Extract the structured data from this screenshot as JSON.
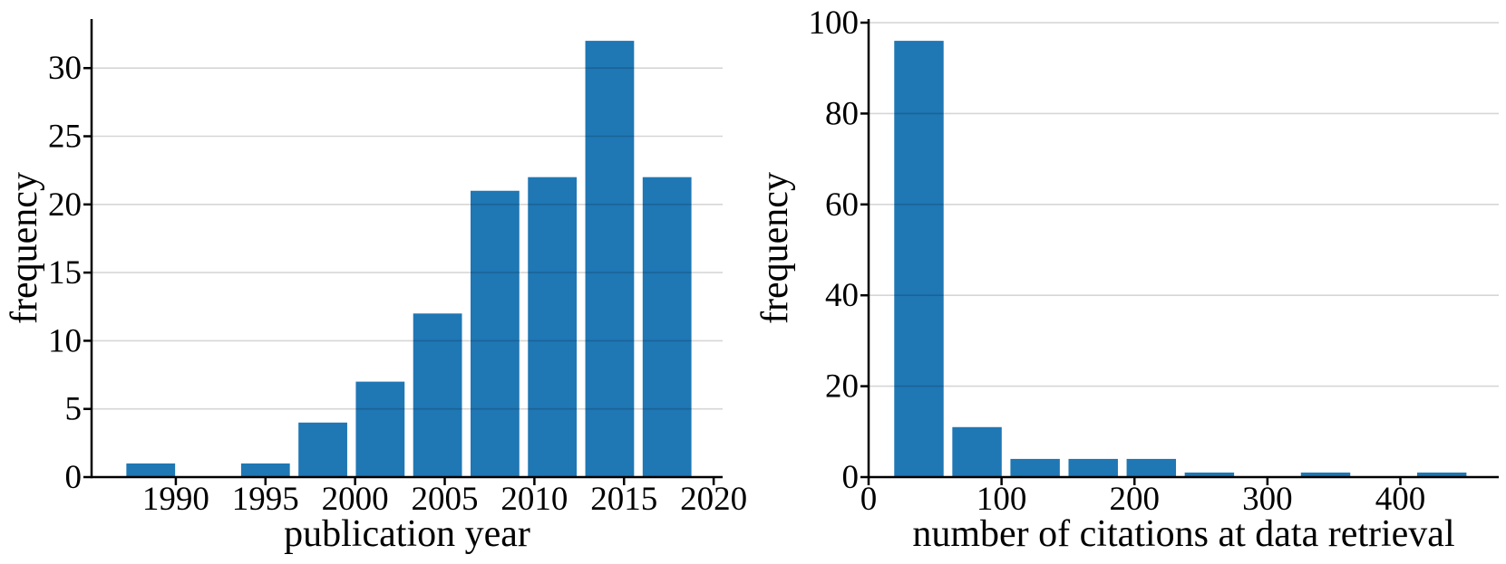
{
  "figure": {
    "background": "#ffffff",
    "text_color": "#000000"
  },
  "chart_data": [
    {
      "type": "bar",
      "subtype": "histogram",
      "xlabel": "publication year",
      "ylabel": "frequency",
      "bar_color": "#1f77b4",
      "grid_color": "rgba(0,0,0,0.16)",
      "axis_color": "#000000",
      "grid": "y-only",
      "legend": "none",
      "xlim": [
        1985.3,
        2020.5
      ],
      "ylim": [
        0,
        33.6
      ],
      "xticks": [
        1990,
        1995,
        2000,
        2005,
        2010,
        2015,
        2020
      ],
      "yticks": [
        0,
        5,
        10,
        15,
        20,
        25,
        30
      ],
      "bin_start": 1987,
      "bin_width": 3.2,
      "counts": [
        1,
        0,
        1,
        4,
        7,
        12,
        21,
        22,
        32,
        22
      ],
      "bar_rel_width": 0.85
    },
    {
      "type": "bar",
      "subtype": "histogram",
      "xlabel": "number of citations at data retrieval",
      "ylabel": "frequency",
      "bar_color": "#1f77b4",
      "grid_color": "rgba(0,0,0,0.16)",
      "axis_color": "#000000",
      "grid": "y-only",
      "legend": "none",
      "xlim": [
        0,
        474
      ],
      "ylim": [
        0,
        100.8
      ],
      "xticks": [
        0,
        100,
        200,
        300,
        400
      ],
      "yticks": [
        0,
        20,
        40,
        60,
        80,
        100
      ],
      "bin_start": 16,
      "bin_width": 43.7,
      "counts": [
        96,
        11,
        4,
        4,
        4,
        1,
        0,
        1,
        0,
        1
      ],
      "bar_rel_width": 0.85
    }
  ]
}
